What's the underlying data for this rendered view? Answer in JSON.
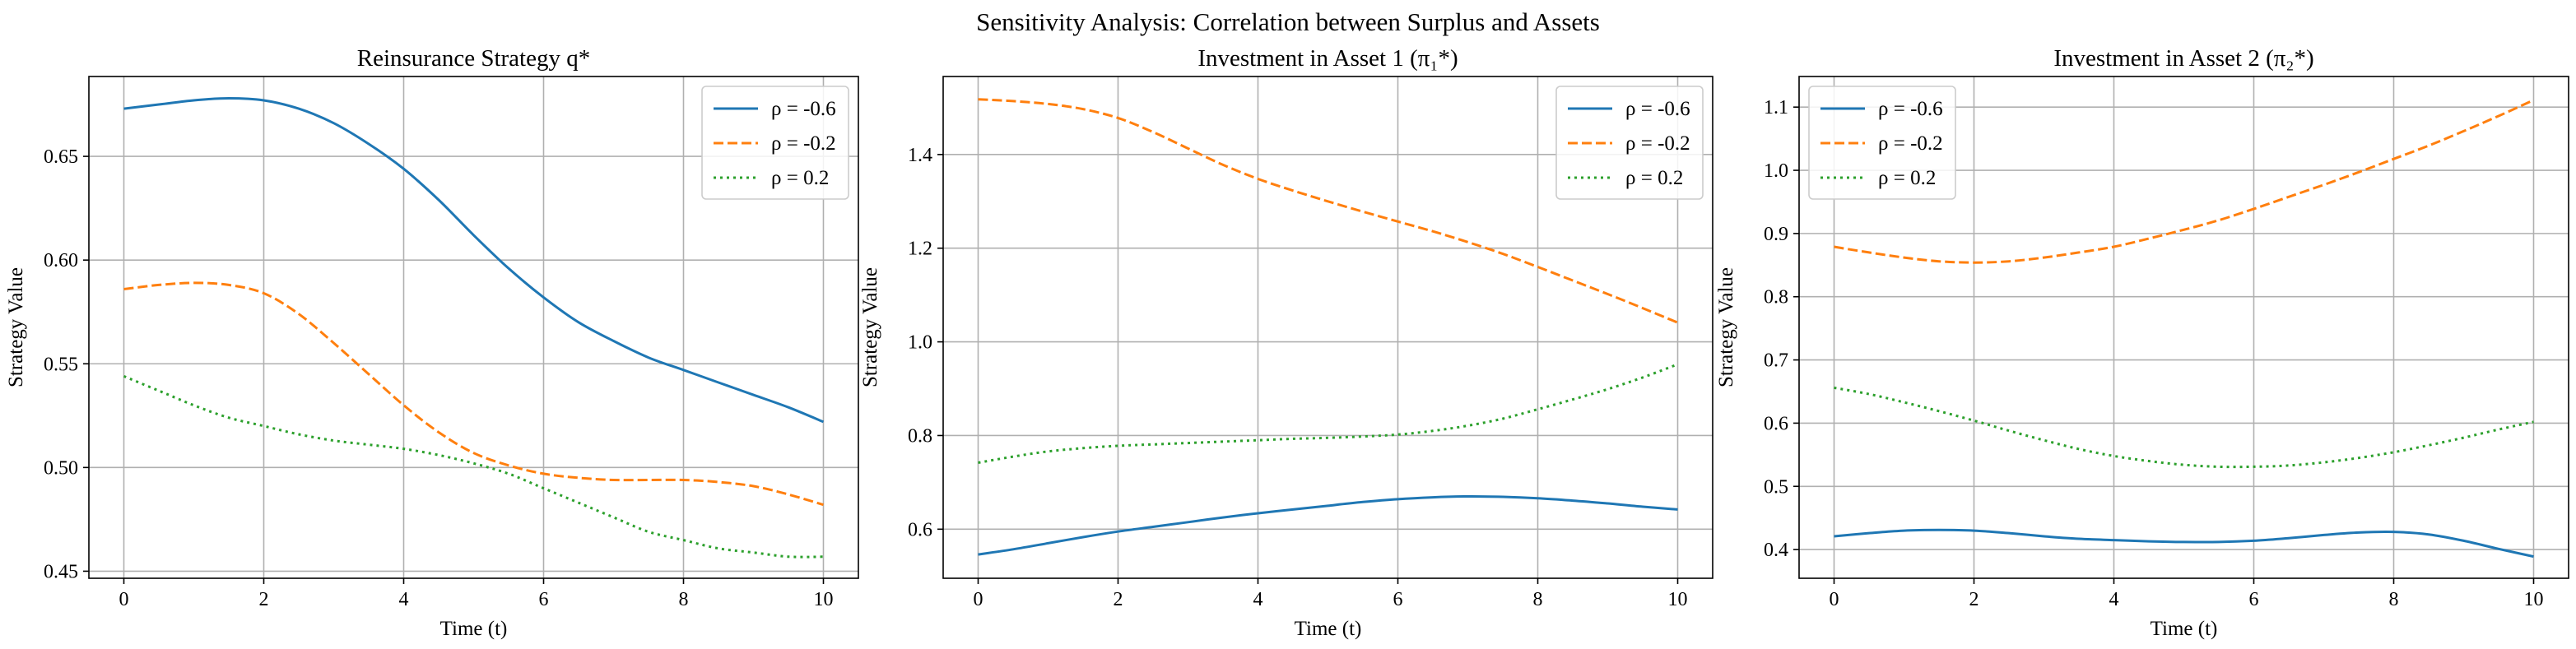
{
  "suptitle": "Sensitivity Analysis: Correlation between Surplus and Assets",
  "colors": {
    "s0": "#1f77b4",
    "s1": "#ff7f0e",
    "s2": "#2ca02c"
  },
  "chart_data": [
    {
      "type": "line",
      "title": "Reinsurance Strategy q*",
      "xlabel": "Time (t)",
      "ylabel": "Strategy Value",
      "xlim": [
        -0.5,
        10.5
      ],
      "ylim": [
        0.4466,
        0.6885
      ],
      "xticks": [
        0,
        2,
        4,
        6,
        8,
        10
      ],
      "yticks": [
        0.45,
        0.5,
        0.55,
        0.6,
        0.65
      ],
      "ytick_labels": [
        "0.45",
        "0.50",
        "0.55",
        "0.60",
        "0.65"
      ],
      "legend_loc": "upper right",
      "series": [
        {
          "name": "ρ = -0.6",
          "style": "solid",
          "color": "#1f77b4",
          "x": [
            0,
            0.5,
            1,
            1.5,
            2,
            2.5,
            3,
            3.5,
            4,
            4.5,
            5,
            5.5,
            6,
            6.5,
            7,
            7.5,
            8,
            8.5,
            9,
            9.5,
            10
          ],
          "y": [
            0.673,
            0.675,
            0.677,
            0.678,
            0.677,
            0.673,
            0.666,
            0.656,
            0.644,
            0.629,
            0.612,
            0.596,
            0.582,
            0.57,
            0.561,
            0.553,
            0.547,
            0.541,
            0.535,
            0.529,
            0.522
          ]
        },
        {
          "name": "ρ = -0.2",
          "style": "dashed",
          "color": "#ff7f0e",
          "x": [
            0,
            0.5,
            1,
            1.5,
            2,
            2.5,
            3,
            3.5,
            4,
            4.5,
            5,
            5.5,
            6,
            6.5,
            7,
            7.5,
            8,
            8.5,
            9,
            9.5,
            10
          ],
          "y": [
            0.586,
            0.588,
            0.589,
            0.588,
            0.584,
            0.574,
            0.56,
            0.545,
            0.53,
            0.517,
            0.507,
            0.501,
            0.497,
            0.495,
            0.494,
            0.494,
            0.494,
            0.493,
            0.491,
            0.487,
            0.482
          ]
        },
        {
          "name": "ρ = 0.2",
          "style": "dotted",
          "color": "#2ca02c",
          "x": [
            0,
            0.5,
            1,
            1.5,
            2,
            2.5,
            3,
            3.5,
            4,
            4.5,
            5,
            5.5,
            6,
            6.5,
            7,
            7.5,
            8,
            8.5,
            9,
            9.5,
            10
          ],
          "y": [
            0.544,
            0.537,
            0.53,
            0.524,
            0.52,
            0.516,
            0.513,
            0.511,
            0.509,
            0.506,
            0.502,
            0.497,
            0.49,
            0.483,
            0.476,
            0.469,
            0.465,
            0.461,
            0.459,
            0.457,
            0.457
          ]
        }
      ]
    },
    {
      "type": "line",
      "title": "Investment in Asset 1 (π₁*)",
      "xlabel": "Time (t)",
      "ylabel": "Strategy Value",
      "xlim": [
        -0.5,
        10.5
      ],
      "ylim": [
        0.4952,
        1.5666
      ],
      "xticks": [
        0,
        2,
        4,
        6,
        8,
        10
      ],
      "yticks": [
        0.6,
        0.8,
        1.0,
        1.2,
        1.4
      ],
      "ytick_labels": [
        "0.6",
        "0.8",
        "1.0",
        "1.2",
        "1.4"
      ],
      "legend_loc": "upper right",
      "series": [
        {
          "name": "ρ = -0.6",
          "style": "solid",
          "color": "#1f77b4",
          "x": [
            0,
            0.5,
            1,
            1.5,
            2,
            2.5,
            3,
            3.5,
            4,
            4.5,
            5,
            5.5,
            6,
            6.5,
            7,
            7.5,
            8,
            8.5,
            9,
            9.5,
            10
          ],
          "y": [
            0.546,
            0.557,
            0.57,
            0.583,
            0.595,
            0.605,
            0.615,
            0.625,
            0.634,
            0.642,
            0.65,
            0.658,
            0.664,
            0.668,
            0.67,
            0.669,
            0.666,
            0.661,
            0.655,
            0.648,
            0.642
          ]
        },
        {
          "name": "ρ = -0.2",
          "style": "dashed",
          "color": "#ff7f0e",
          "x": [
            0,
            0.5,
            1,
            1.5,
            2,
            2.5,
            3,
            3.5,
            4,
            4.5,
            5,
            5.5,
            6,
            6.5,
            7,
            7.5,
            8,
            8.5,
            9,
            9.5,
            10
          ],
          "y": [
            1.518,
            1.514,
            1.508,
            1.497,
            1.478,
            1.448,
            1.413,
            1.378,
            1.348,
            1.323,
            1.3,
            1.278,
            1.257,
            1.236,
            1.213,
            1.188,
            1.16,
            1.131,
            1.102,
            1.072,
            1.041
          ]
        },
        {
          "name": "ρ = 0.2",
          "style": "dotted",
          "color": "#2ca02c",
          "x": [
            0,
            0.5,
            1,
            1.5,
            2,
            2.5,
            3,
            3.5,
            4,
            4.5,
            5,
            5.5,
            6,
            6.5,
            7,
            7.5,
            8,
            8.5,
            9,
            9.5,
            10
          ],
          "y": [
            0.742,
            0.755,
            0.766,
            0.773,
            0.778,
            0.781,
            0.784,
            0.787,
            0.79,
            0.793,
            0.795,
            0.798,
            0.802,
            0.81,
            0.821,
            0.836,
            0.856,
            0.877,
            0.899,
            0.924,
            0.952
          ]
        }
      ]
    },
    {
      "type": "line",
      "title": "Investment in Asset 2 (π₂*)",
      "xlabel": "Time (t)",
      "ylabel": "Strategy Value",
      "xlim": [
        -0.5,
        10.5
      ],
      "ylim": [
        0.3546,
        1.1484
      ],
      "xticks": [
        0,
        2,
        4,
        6,
        8,
        10
      ],
      "yticks": [
        0.4,
        0.5,
        0.6,
        0.7,
        0.8,
        0.9,
        1.0,
        1.1
      ],
      "ytick_labels": [
        "0.4",
        "0.5",
        "0.6",
        "0.7",
        "0.8",
        "0.9",
        "1.0",
        "1.1"
      ],
      "legend_loc": "upper left",
      "series": [
        {
          "name": "ρ = -0.6",
          "style": "solid",
          "color": "#1f77b4",
          "x": [
            0,
            0.5,
            1,
            1.5,
            2,
            2.5,
            3,
            3.5,
            4,
            4.5,
            5,
            5.5,
            6,
            6.5,
            7,
            7.5,
            8,
            8.5,
            9,
            9.5,
            10
          ],
          "y": [
            0.421,
            0.426,
            0.43,
            0.431,
            0.43,
            0.426,
            0.421,
            0.417,
            0.415,
            0.413,
            0.412,
            0.412,
            0.414,
            0.418,
            0.423,
            0.427,
            0.428,
            0.424,
            0.414,
            0.401,
            0.389
          ]
        },
        {
          "name": "ρ = -0.2",
          "style": "dashed",
          "color": "#ff7f0e",
          "x": [
            0,
            0.5,
            1,
            1.5,
            2,
            2.5,
            3,
            3.5,
            4,
            4.5,
            5,
            5.5,
            6,
            6.5,
            7,
            7.5,
            8,
            8.5,
            9,
            9.5,
            10
          ],
          "y": [
            0.879,
            0.87,
            0.862,
            0.856,
            0.854,
            0.856,
            0.862,
            0.87,
            0.879,
            0.892,
            0.906,
            0.921,
            0.939,
            0.958,
            0.977,
            0.997,
            1.018,
            1.039,
            1.062,
            1.086,
            1.111
          ]
        },
        {
          "name": "ρ = 0.2",
          "style": "dotted",
          "color": "#2ca02c",
          "x": [
            0,
            0.5,
            1,
            1.5,
            2,
            2.5,
            3,
            3.5,
            4,
            4.5,
            5,
            5.5,
            6,
            6.5,
            7,
            7.5,
            8,
            8.5,
            9,
            9.5,
            10
          ],
          "y": [
            0.656,
            0.646,
            0.633,
            0.619,
            0.604,
            0.588,
            0.573,
            0.559,
            0.548,
            0.54,
            0.534,
            0.531,
            0.531,
            0.533,
            0.538,
            0.545,
            0.554,
            0.565,
            0.577,
            0.59,
            0.602
          ]
        }
      ]
    }
  ]
}
